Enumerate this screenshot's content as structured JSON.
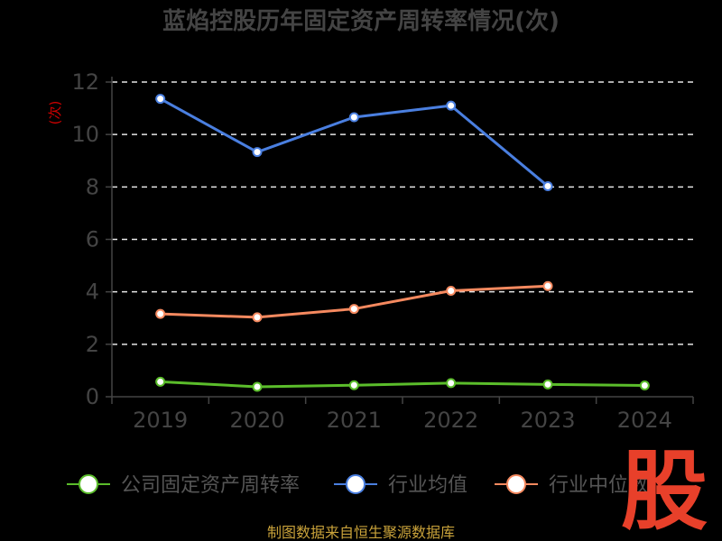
{
  "chart_data": {
    "type": "line",
    "title": "蓝焰控股历年固定资产周转率情况(次)",
    "ylabel": "(次)",
    "categories": [
      "2019",
      "2020",
      "2021",
      "2022",
      "2023",
      "2024"
    ],
    "ylim": [
      0,
      12
    ],
    "yticks": [
      0,
      2,
      4,
      6,
      8,
      10,
      12
    ],
    "grid": true,
    "legend_position": "bottom",
    "series": [
      {
        "name": "公司固定资产周转率",
        "color": "#5bbd2b",
        "values": [
          0.57,
          0.38,
          0.44,
          0.52,
          0.47,
          0.43
        ]
      },
      {
        "name": "行业均值",
        "color": "#4a7fe0",
        "values": [
          11.36,
          9.33,
          10.66,
          11.1,
          8.03,
          null
        ]
      },
      {
        "name": "行业中位数",
        "color": "#f5895f",
        "values": [
          3.16,
          3.03,
          3.35,
          4.04,
          4.22,
          null
        ]
      }
    ]
  },
  "footer": {
    "source": "制图数据来自恒生聚源数据库"
  },
  "watermark": {
    "text": "股",
    "color": "#e8402a"
  }
}
